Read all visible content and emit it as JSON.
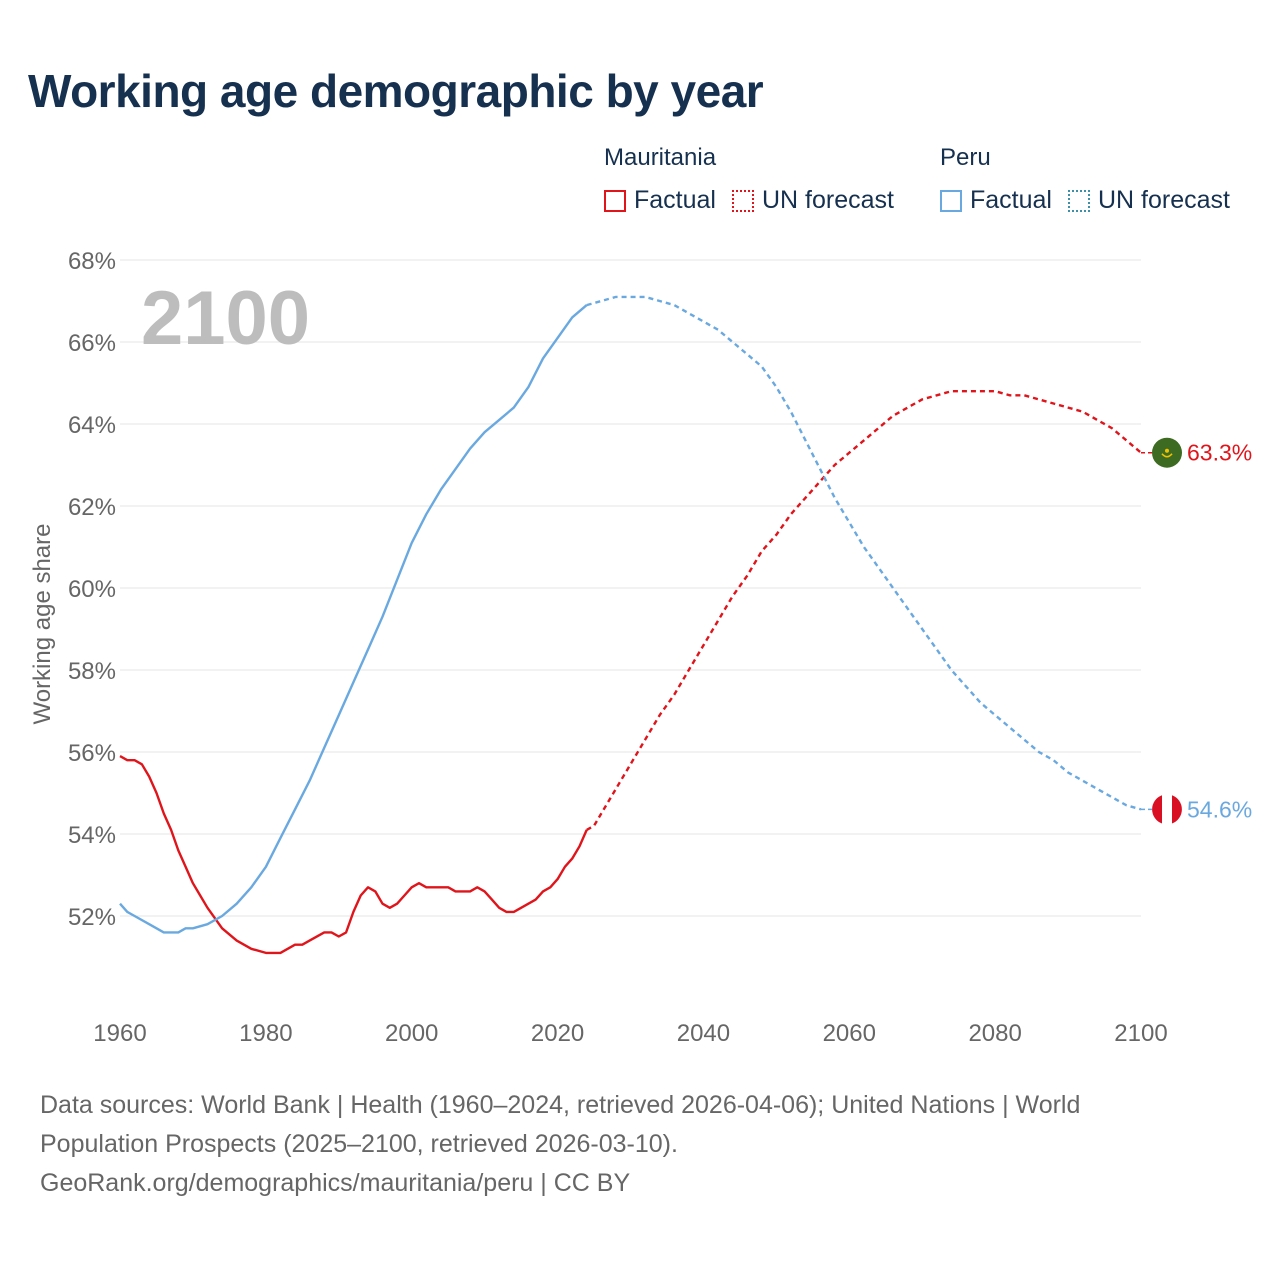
{
  "title": "Working age demographic by year",
  "legend": {
    "groups": [
      {
        "name": "Mauritania",
        "factual": "Factual",
        "forecast": "UN forecast"
      },
      {
        "name": "Peru",
        "factual": "Factual",
        "forecast": "UN forecast"
      }
    ]
  },
  "colors": {
    "mauritania": "#e0151b",
    "peru": "#6aa9e0",
    "grid": "#e6e6e6",
    "tick_text": "#666666",
    "year_watermark": "#bdbdbd",
    "mauritania_flag": "#3d6b22",
    "mauritania_flag_star": "#f2c200",
    "peru_flag_red": "#d91023"
  },
  "footer": {
    "line1": "Data sources: World Bank | Health (1960–2024, retrieved 2026-04-06); United Nations | World Population Prospects (2025–2100, retrieved 2026-03-10).",
    "line2": "GeoRank.org/demographics/mauritania/peru | CC BY"
  },
  "chart_data": {
    "type": "line",
    "title": "Working age demographic by year",
    "ylabel": "Working age share",
    "xlabel": "",
    "year_watermark": "2100",
    "xlim": [
      1960,
      2100
    ],
    "ylim": [
      50,
      68
    ],
    "x_ticks": [
      1960,
      1980,
      2000,
      2020,
      2040,
      2060,
      2080,
      2100
    ],
    "x_tick_labels": [
      "1960",
      "1980",
      "2000",
      "2020",
      "2040",
      "2060",
      "2080",
      "2100"
    ],
    "y_ticks": [
      52,
      54,
      56,
      58,
      60,
      62,
      64,
      66,
      68
    ],
    "y_tick_labels": [
      "52%",
      "54%",
      "56%",
      "58%",
      "60%",
      "62%",
      "64%",
      "66%",
      "68%"
    ],
    "legend_position": "top-right",
    "series": [
      {
        "name": "Mauritania",
        "key": "mauritania",
        "end_label": "63.3%",
        "factual": {
          "x": [
            1960,
            1961,
            1962,
            1963,
            1964,
            1965,
            1966,
            1967,
            1968,
            1969,
            1970,
            1972,
            1974,
            1976,
            1978,
            1980,
            1982,
            1984,
            1985,
            1986,
            1988,
            1989,
            1990,
            1991,
            1992,
            1993,
            1994,
            1995,
            1996,
            1997,
            1998,
            1999,
            2000,
            2001,
            2002,
            2003,
            2004,
            2005,
            2006,
            2007,
            2008,
            2009,
            2010,
            2011,
            2012,
            2013,
            2014,
            2015,
            2016,
            2017,
            2018,
            2019,
            2020,
            2021,
            2022,
            2023,
            2024
          ],
          "y": [
            55.9,
            55.8,
            55.8,
            55.7,
            55.4,
            55.0,
            54.5,
            54.1,
            53.6,
            53.2,
            52.8,
            52.2,
            51.7,
            51.4,
            51.2,
            51.1,
            51.1,
            51.3,
            51.3,
            51.4,
            51.6,
            51.6,
            51.5,
            51.6,
            52.1,
            52.5,
            52.7,
            52.6,
            52.3,
            52.2,
            52.3,
            52.5,
            52.7,
            52.8,
            52.7,
            52.7,
            52.7,
            52.7,
            52.6,
            52.6,
            52.6,
            52.7,
            52.6,
            52.4,
            52.2,
            52.1,
            52.1,
            52.2,
            52.3,
            52.4,
            52.6,
            52.7,
            52.9,
            53.2,
            53.4,
            53.7,
            54.1
          ]
        },
        "forecast": {
          "x": [
            2024,
            2025,
            2026,
            2028,
            2030,
            2032,
            2034,
            2036,
            2038,
            2040,
            2042,
            2044,
            2046,
            2048,
            2050,
            2052,
            2054,
            2056,
            2058,
            2060,
            2062,
            2064,
            2066,
            2068,
            2070,
            2072,
            2074,
            2076,
            2078,
            2080,
            2082,
            2084,
            2086,
            2088,
            2090,
            2092,
            2094,
            2096,
            2098,
            2100
          ],
          "y": [
            54.1,
            54.2,
            54.5,
            55.1,
            55.7,
            56.3,
            56.9,
            57.4,
            58.0,
            58.6,
            59.2,
            59.8,
            60.3,
            60.9,
            61.3,
            61.8,
            62.2,
            62.6,
            63.0,
            63.3,
            63.6,
            63.9,
            64.2,
            64.4,
            64.6,
            64.7,
            64.8,
            64.8,
            64.8,
            64.8,
            64.7,
            64.7,
            64.6,
            64.5,
            64.4,
            64.3,
            64.1,
            63.9,
            63.6,
            63.3
          ]
        }
      },
      {
        "name": "Peru",
        "key": "peru",
        "end_label": "54.6%",
        "factual": {
          "x": [
            1960,
            1961,
            1962,
            1964,
            1966,
            1968,
            1969,
            1970,
            1972,
            1974,
            1976,
            1978,
            1980,
            1982,
            1984,
            1986,
            1988,
            1990,
            1992,
            1994,
            1996,
            1998,
            2000,
            2002,
            2004,
            2006,
            2008,
            2010,
            2012,
            2014,
            2016,
            2018,
            2020,
            2022,
            2024
          ],
          "y": [
            52.3,
            52.1,
            52.0,
            51.8,
            51.6,
            51.6,
            51.7,
            51.7,
            51.8,
            52.0,
            52.3,
            52.7,
            53.2,
            53.9,
            54.6,
            55.3,
            56.1,
            56.9,
            57.7,
            58.5,
            59.3,
            60.2,
            61.1,
            61.8,
            62.4,
            62.9,
            63.4,
            63.8,
            64.1,
            64.4,
            64.9,
            65.6,
            66.1,
            66.6,
            66.9
          ]
        },
        "forecast": {
          "x": [
            2024,
            2026,
            2028,
            2030,
            2032,
            2034,
            2036,
            2038,
            2040,
            2042,
            2044,
            2046,
            2048,
            2050,
            2052,
            2054,
            2056,
            2058,
            2060,
            2062,
            2064,
            2066,
            2068,
            2070,
            2072,
            2074,
            2076,
            2078,
            2080,
            2082,
            2084,
            2086,
            2088,
            2090,
            2092,
            2094,
            2096,
            2098,
            2100
          ],
          "y": [
            66.9,
            67.0,
            67.1,
            67.1,
            67.1,
            67.0,
            66.9,
            66.7,
            66.5,
            66.3,
            66.0,
            65.7,
            65.4,
            64.9,
            64.3,
            63.6,
            62.9,
            62.2,
            61.6,
            61.0,
            60.5,
            60.0,
            59.5,
            59.0,
            58.5,
            58.0,
            57.6,
            57.2,
            56.9,
            56.6,
            56.3,
            56.0,
            55.8,
            55.5,
            55.3,
            55.1,
            54.9,
            54.7,
            54.6
          ]
        }
      }
    ]
  }
}
